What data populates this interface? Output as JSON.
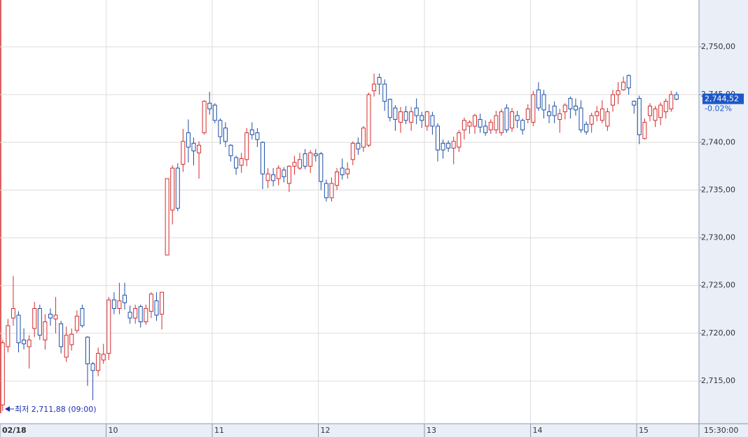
{
  "chart_data": {
    "type": "candlestick",
    "up_color": "#d42a2a",
    "down_color": "#1c4ea6",
    "grid": true,
    "xlim": [
      9,
      15.587
    ],
    "xticks": [
      {
        "value": 9,
        "label": "02/18"
      },
      10,
      11,
      12,
      13,
      14,
      15
    ],
    "ylim": [
      2710.53,
      2754.91
    ],
    "yticks": [
      {
        "value": 2715,
        "label": "2,715,00"
      },
      {
        "value": 2720,
        "label": "2,720,00"
      },
      {
        "value": 2725,
        "label": "2,725,00"
      },
      {
        "value": 2730,
        "label": "2,730,00"
      },
      {
        "value": 2735,
        "label": "2,735,00"
      },
      {
        "value": 2740,
        "label": "2,740,00"
      },
      {
        "value": 2745,
        "label": "2,745,00"
      },
      {
        "value": 2750,
        "label": "2,750,00"
      }
    ],
    "time_label": "15:30:00",
    "low_annotation": "최저 2,711,88 (09:00)",
    "last_price": {
      "value": 2744.52,
      "label": "2,744,52"
    },
    "change_label": "-0.02%",
    "x": [
      9,
      9.05,
      9.1,
      9.15,
      9.2,
      9.25,
      9.3,
      9.35,
      9.4,
      9.45,
      9.5,
      9.55,
      9.6,
      9.65,
      9.7,
      9.75,
      9.8,
      9.85,
      9.9,
      9.95,
      10,
      10.05,
      10.1,
      10.15,
      10.2,
      10.25,
      10.3,
      10.35,
      10.4,
      10.45,
      10.5,
      10.55,
      10.6,
      10.65,
      10.7,
      10.75,
      10.8,
      10.85,
      10.9,
      10.95,
      11,
      11.05,
      11.1,
      11.15,
      11.2,
      11.25,
      11.3,
      11.35,
      11.4,
      11.45,
      11.5,
      11.55,
      11.6,
      11.65,
      11.7,
      11.75,
      11.8,
      11.85,
      11.9,
      11.95,
      12,
      12.05,
      12.1,
      12.15,
      12.2,
      12.25,
      12.3,
      12.35,
      12.4,
      12.45,
      12.5,
      12.55,
      12.6,
      12.65,
      12.7,
      12.75,
      12.8,
      12.85,
      12.9,
      12.95,
      13,
      13.05,
      13.1,
      13.15,
      13.2,
      13.25,
      13.3,
      13.35,
      13.4,
      13.45,
      13.5,
      13.55,
      13.6,
      13.65,
      13.7,
      13.75,
      13.8,
      13.85,
      13.9,
      13.95,
      14,
      14.05,
      14.1,
      14.15,
      14.2,
      14.25,
      14.3,
      14.35,
      14.4,
      14.45,
      14.5,
      14.55,
      14.6,
      14.65,
      14.7,
      14.75,
      14.8,
      14.85,
      14.9,
      14.95,
      15,
      15.05,
      15.1,
      15.15,
      15.2,
      15.25,
      15.3,
      15.35
    ],
    "open": [
      2712.5,
      2718.6,
      2721.6,
      2721.9,
      2719.3,
      2718.6,
      2720.5,
      2722.6,
      2719.3,
      2722,
      2721.5,
      2721,
      2717.5,
      2718.8,
      2720.3,
      2722.6,
      2719.6,
      2716.8,
      2716.1,
      2717.2,
      2717.9,
      2723.5,
      2722.6,
      2724,
      2722.2,
      2721.6,
      2722.8,
      2721.2,
      2722.3,
      2723.4,
      2722,
      2728.2,
      2732.9,
      2737.3,
      2737.7,
      2741,
      2739.9,
      2738.9,
      2741,
      2744.1,
      2743.9,
      2742.3,
      2741.5,
      2739.7,
      2738.4,
      2737.6,
      2738.2,
      2741.3,
      2741,
      2740,
      2736,
      2736.6,
      2736.2,
      2737.1,
      2735.7,
      2737.5,
      2737.3,
      2738.8,
      2737.5,
      2738.8,
      2738.8,
      2735.7,
      2734.2,
      2735.5,
      2737.3,
      2736.7,
      2738.2,
      2739.9,
      2739.5,
      2739.7,
      2745.4,
      2746.8,
      2746.1,
      2744.5,
      2743.6,
      2742.1,
      2743.2,
      2742.1,
      2743.6,
      2742.8,
      2741.7,
      2742.8,
      2741.7,
      2739.9,
      2739.9,
      2739.4,
      2739.5,
      2741.3,
      2741.7,
      2741.7,
      2742.4,
      2741.7,
      2741.3,
      2741.3,
      2741,
      2743.6,
      2741.5,
      2742.8,
      2742.3,
      2742.4,
      2742.1,
      2745.5,
      2745,
      2743.2,
      2743.8,
      2742.4,
      2743.2,
      2744.6,
      2743.8,
      2743.6,
      2741.9,
      2741.9,
      2742.8,
      2742.3,
      2741.7,
      2743.9,
      2745,
      2745.5,
      2747,
      2744.3,
      2744.6,
      2740.4,
      2742.8,
      2742.3,
      2742.6,
      2743.2,
      2743.5,
      2745
    ],
    "high": [
      2719.3,
      2721.5,
      2726,
      2722.3,
      2720.5,
      2719.8,
      2723.3,
      2723,
      2722,
      2722.6,
      2723.8,
      2721.3,
      2720.7,
      2720.5,
      2722.4,
      2723,
      2719.7,
      2717,
      2718.5,
      2718.9,
      2723.8,
      2724.3,
      2725.3,
      2725.3,
      2722.9,
      2723,
      2723,
      2723,
      2724.3,
      2724.3,
      2724.3,
      2736.2,
      2737.6,
      2737.8,
      2741.4,
      2742.4,
      2740.5,
      2740.1,
      2744.4,
      2745.3,
      2744.1,
      2742.5,
      2742.1,
      2739.8,
      2738.6,
      2738.9,
      2741.5,
      2742.1,
      2741.5,
      2740.1,
      2737.3,
      2737.3,
      2737.6,
      2737.4,
      2737.6,
      2738.6,
      2738.9,
      2739.3,
      2739.2,
      2739.3,
      2739,
      2736.1,
      2736.3,
      2737.3,
      2738.3,
      2737.9,
      2740.1,
      2740.5,
      2741.7,
      2745.2,
      2747.2,
      2747.2,
      2746.6,
      2744.6,
      2743.9,
      2743.7,
      2743.8,
      2743.7,
      2744.6,
      2743.2,
      2743.3,
      2743.2,
      2742,
      2740.3,
      2740.2,
      2740.6,
      2741.3,
      2742.6,
      2742.3,
      2743,
      2743,
      2742.3,
      2742.4,
      2743.3,
      2743.5,
      2744,
      2743.6,
      2743.3,
      2742.5,
      2744,
      2745.4,
      2746.3,
      2745.5,
      2744,
      2744.3,
      2743.5,
      2744.1,
      2744.8,
      2744.6,
      2744.4,
      2742.2,
      2743.1,
      2743.8,
      2744.4,
      2743.6,
      2745.5,
      2746.3,
      2746.9,
      2747.1,
      2744.4,
      2744.9,
      2742.5,
      2744.1,
      2743.8,
      2744.2,
      2744.6,
      2745.4,
      2745.3
    ],
    "low": [
      2711.88,
      2718,
      2720.8,
      2718,
      2718.3,
      2716.3,
      2719.6,
      2719.3,
      2718.3,
      2720.8,
      2720,
      2717.9,
      2717,
      2718.2,
      2720,
      2720.6,
      2714.5,
      2713,
      2715.5,
      2716.8,
      2717.2,
      2722,
      2722,
      2722.5,
      2721,
      2721,
      2720.6,
      2720.9,
      2721.6,
      2721.3,
      2720.4,
      2728.2,
      2731.4,
      2732.8,
      2736.9,
      2737.9,
      2737.6,
      2736.2,
      2740.8,
      2742.9,
      2742,
      2739.8,
      2739.5,
      2738,
      2736.6,
      2736.8,
      2737.5,
      2740.3,
      2739.5,
      2735.1,
      2735.2,
      2735.4,
      2735.5,
      2735.8,
      2734.8,
      2736.6,
      2737.1,
      2737.2,
      2736.8,
      2738,
      2735,
      2733.8,
      2733.8,
      2735,
      2736.1,
      2736.2,
      2737.6,
      2738.7,
      2739,
      2739.5,
      2744.8,
      2745,
      2743.3,
      2742.2,
      2741.2,
      2741,
      2741.9,
      2741.2,
      2741.9,
      2741.5,
      2741.2,
      2740.8,
      2738,
      2738.3,
      2739,
      2737.7,
      2739,
      2740.3,
      2740.9,
      2740.9,
      2741,
      2740.7,
      2740.9,
      2740.9,
      2740.7,
      2741,
      2741.1,
      2741.5,
      2740.8,
      2742,
      2741.7,
      2743.3,
      2742.5,
      2742,
      2742,
      2741,
      2742.4,
      2742.5,
      2742.8,
      2741,
      2740.8,
      2741,
      2742.2,
      2742,
      2741.2,
      2743.2,
      2744,
      2745.4,
      2745,
      2743,
      2739.8,
      2740.3,
      2742.2,
      2741.6,
      2741.8,
      2742.5,
      2743.2,
      2744.4
    ],
    "close": [
      2719,
      2720.8,
      2722.6,
      2719,
      2718.9,
      2719.3,
      2722.6,
      2719.8,
      2721.2,
      2721.6,
      2721.9,
      2718.6,
      2719.8,
      2719.9,
      2721.8,
      2720.8,
      2716.8,
      2716.1,
      2717.9,
      2717.8,
      2723.5,
      2722.6,
      2723.4,
      2723.2,
      2721.6,
      2722.6,
      2721.2,
      2722.6,
      2724.1,
      2721.9,
      2724.3,
      2736.2,
      2737.3,
      2733.1,
      2740.1,
      2739.5,
      2739.1,
      2739.7,
      2744.3,
      2743.5,
      2742.3,
      2740.6,
      2740.1,
      2738.6,
      2737.3,
      2738.3,
      2741,
      2740.8,
      2740.3,
      2736.7,
      2736.7,
      2736,
      2737.3,
      2736.4,
      2737.5,
      2737.9,
      2738.2,
      2737.5,
      2738.9,
      2738.6,
      2735.9,
      2734.2,
      2735.7,
      2736.9,
      2736.6,
      2737.2,
      2739.9,
      2739.3,
      2741.5,
      2745,
      2746.1,
      2746.1,
      2744.3,
      2742.6,
      2742.4,
      2743.2,
      2742.3,
      2743.2,
      2742.8,
      2742.3,
      2743.2,
      2741.7,
      2739.2,
      2739.2,
      2739.4,
      2740.1,
      2741,
      2742.3,
      2742.1,
      2742.8,
      2741.6,
      2741,
      2742.1,
      2742.8,
      2743.2,
      2741.3,
      2743.2,
      2742.3,
      2741.3,
      2743.5,
      2745,
      2743.6,
      2743.4,
      2742.8,
      2742.8,
      2743,
      2743.9,
      2743.5,
      2743.4,
      2741.3,
      2741.1,
      2742.8,
      2743.2,
      2743.5,
      2743.2,
      2745,
      2745.4,
      2746.3,
      2745.7,
      2743.9,
      2740.8,
      2742.1,
      2743.8,
      2743.5,
      2743.9,
      2744.3,
      2745,
      2744.52
    ]
  }
}
